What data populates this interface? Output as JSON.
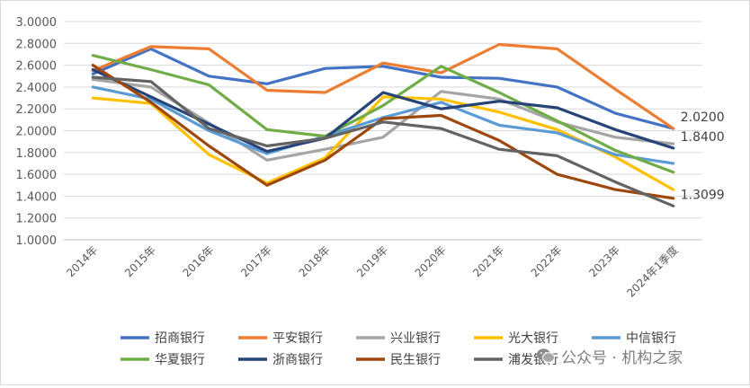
{
  "chart_data": {
    "type": "line",
    "title": "",
    "xlabel": "",
    "ylabel": "",
    "ylim": [
      1.0,
      3.0
    ],
    "y_ticks": [
      "3.0000",
      "2.8000",
      "2.6000",
      "2.4000",
      "2.2000",
      "2.0000",
      "1.8000",
      "1.6000",
      "1.4000",
      "1.2000",
      "1.0000"
    ],
    "y_tick_values": [
      3.0,
      2.8,
      2.6,
      2.4,
      2.2,
      2.0,
      1.8,
      1.6,
      1.4,
      1.2,
      1.0
    ],
    "categories": [
      "2014年",
      "2015年",
      "2016年",
      "2017年",
      "2018年",
      "2019年",
      "2020年",
      "2021年",
      "2022年",
      "2023年",
      "2024年1季度"
    ],
    "legend_position": "bottom",
    "grid": true,
    "series": [
      {
        "name": "招商银行",
        "color": "#4472C4",
        "values": [
          2.52,
          2.75,
          2.5,
          2.43,
          2.57,
          2.59,
          2.49,
          2.48,
          2.4,
          2.16,
          2.02
        ]
      },
      {
        "name": "平安银行",
        "color": "#ED7D31",
        "values": [
          2.55,
          2.77,
          2.75,
          2.37,
          2.35,
          2.62,
          2.53,
          2.79,
          2.75,
          2.38,
          2.02
        ]
      },
      {
        "name": "兴业银行",
        "color": "#A5A5A5",
        "values": [
          2.47,
          2.4,
          2.07,
          1.73,
          1.83,
          1.94,
          2.36,
          2.29,
          2.08,
          1.94,
          1.88
        ]
      },
      {
        "name": "光大银行",
        "color": "#FFC000",
        "values": [
          2.3,
          2.25,
          1.78,
          1.52,
          1.75,
          2.31,
          2.29,
          2.17,
          2.01,
          1.76,
          1.46
        ]
      },
      {
        "name": "中信银行",
        "color": "#5B9BD5",
        "values": [
          2.4,
          2.29,
          2.0,
          1.79,
          1.95,
          2.12,
          2.26,
          2.05,
          1.98,
          1.78,
          1.7
        ]
      },
      {
        "name": "华夏银行",
        "color": "#70AD47",
        "values": [
          2.69,
          2.56,
          2.42,
          2.01,
          1.95,
          2.23,
          2.59,
          2.35,
          2.09,
          1.82,
          1.62
        ]
      },
      {
        "name": "浙商银行",
        "color": "#264478",
        "values": [
          2.56,
          2.31,
          2.06,
          1.81,
          1.93,
          2.35,
          2.2,
          2.27,
          2.21,
          2.01,
          1.84
        ]
      },
      {
        "name": "民生银行",
        "color": "#9E480E",
        "values": [
          2.6,
          2.26,
          1.86,
          1.5,
          1.73,
          2.11,
          2.14,
          1.91,
          1.6,
          1.46,
          1.38
        ]
      },
      {
        "name": "浦发银行",
        "color": "#636363",
        "values": [
          2.49,
          2.45,
          2.02,
          1.86,
          1.93,
          2.08,
          2.02,
          1.83,
          1.77,
          1.53,
          1.31
        ]
      }
    ],
    "annotations": [
      {
        "series": "平安银行",
        "text": "2.0200"
      },
      {
        "series": "浙商银行",
        "text": "1.8400"
      },
      {
        "series": "浦发银行",
        "text": "1.3099"
      }
    ]
  },
  "watermark": {
    "text": "公众号 · 机构之家",
    "icon": "wechat-icon"
  }
}
